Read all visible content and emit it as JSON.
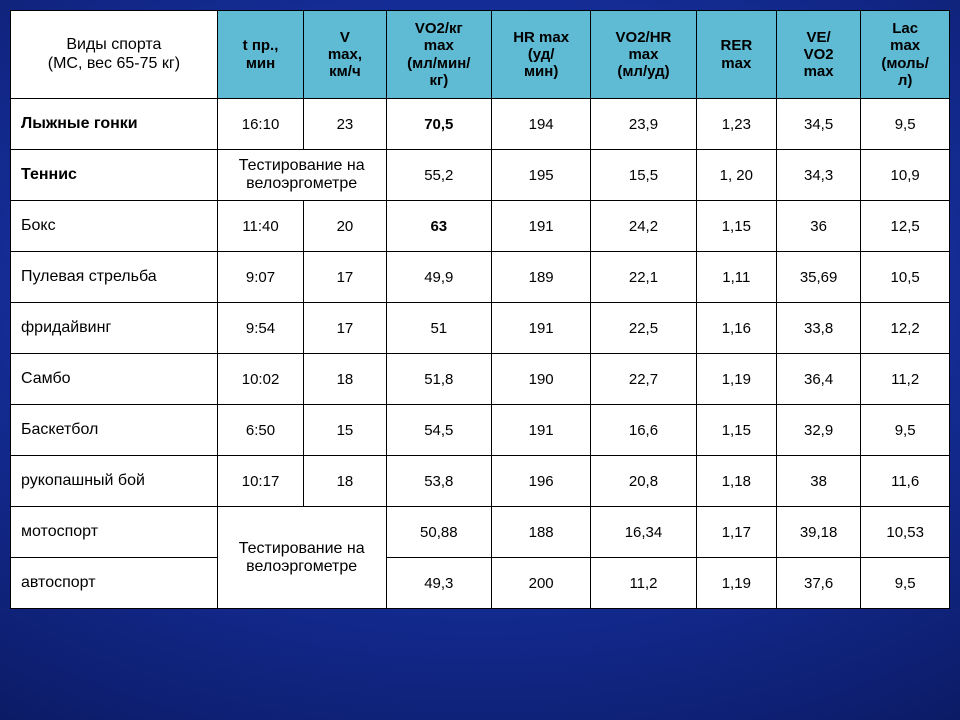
{
  "table": {
    "header_bg": "#5fbad3",
    "red": "#c00000",
    "columns": [
      {
        "label": "Виды спорта\n(МС, вес 65-75 кг)",
        "class": "rowhdr"
      },
      {
        "label": "t пр.,\nмин"
      },
      {
        "label": "V\nmax,\nкм/ч"
      },
      {
        "label": "VO2/кг\nmax\n(мл/мин/\nкг)",
        "red": true
      },
      {
        "label": "HR max\n(уд/\nмин)"
      },
      {
        "label": "VO2/HR\nmax\n(мл/уд)"
      },
      {
        "label": "RER\nmax"
      },
      {
        "label": "VE/\nVO2\nmax"
      },
      {
        "label": "Lac\nmax\n(моль/\nл)"
      }
    ],
    "merged_note": "Тестирование на\nвелоэргометре",
    "rows": [
      {
        "sport": "Лыжные гонки",
        "sport_bold": true,
        "cells": [
          "16:10",
          "23",
          {
            "v": "70,5",
            "red": true,
            "bold": true
          },
          "194",
          "23,9",
          "1,23",
          "34,5",
          "9,5"
        ]
      },
      {
        "sport": "Теннис",
        "sport_bold": true,
        "merge12": true,
        "cells": [
          null,
          null,
          {
            "v": "55,2",
            "red": true
          },
          "195",
          "15,5",
          "1, 20",
          "34,3",
          "10,9"
        ]
      },
      {
        "sport": "Бокс",
        "cells": [
          "11:40",
          "20",
          {
            "v": "63",
            "red": true,
            "bold": true
          },
          "191",
          "24,2",
          "1,15",
          "36",
          "12,5"
        ]
      },
      {
        "sport": "Пулевая стрельба",
        "cells": [
          "9:07",
          "17",
          {
            "v": "49,9",
            "red": true
          },
          "189",
          "22,1",
          "1,11",
          "35,69",
          "10,5"
        ]
      },
      {
        "sport": "фридайвинг",
        "cells": [
          "9:54",
          "17",
          {
            "v": "51",
            "red": true
          },
          "191",
          "22,5",
          "1,16",
          "33,8",
          "12,2"
        ]
      },
      {
        "sport": "Самбо",
        "cells": [
          "10:02",
          "18",
          {
            "v": "51,8",
            "red": true
          },
          "190",
          "22,7",
          "1,19",
          "36,4",
          "11,2"
        ]
      },
      {
        "sport": "Баскетбол",
        "cells": [
          "6:50",
          "15",
          {
            "v": "54,5",
            "red": true
          },
          "191",
          "16,6",
          "1,15",
          "32,9",
          "9,5"
        ]
      },
      {
        "sport": "рукопашный бой",
        "cells": [
          "10:17",
          "18",
          {
            "v": "53,8",
            "red": true
          },
          "196",
          "20,8",
          "1,18",
          "38",
          "11,6"
        ]
      },
      {
        "sport": "мотоспорт",
        "merge12_rowspan_start": true,
        "cells": [
          null,
          null,
          {
            "v": "50,88",
            "red": true
          },
          "188",
          "16,34",
          "1,17",
          "39,18",
          "10,53"
        ]
      },
      {
        "sport": "автоспорт",
        "merge12_rowspan_cont": true,
        "cells": [
          null,
          null,
          {
            "v": "49,3",
            "red": true
          },
          "200",
          "11,2",
          "1,19",
          "37,6",
          "9,5"
        ]
      }
    ]
  }
}
